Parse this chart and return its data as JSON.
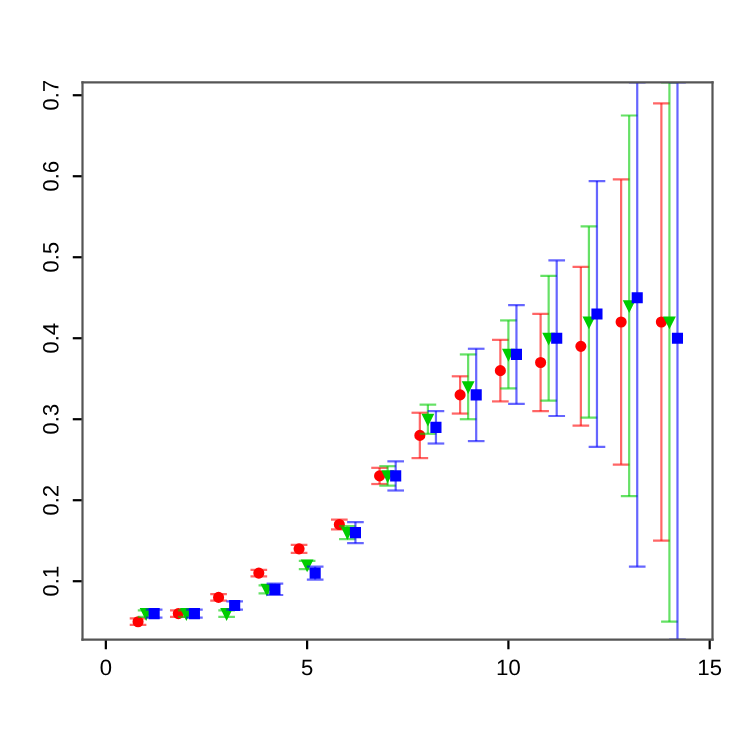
{
  "chart_data": {
    "type": "scatter",
    "xlim": [
      -0.58,
      15.07
    ],
    "ylim": [
      0.028,
      0.716
    ],
    "xticks": [
      0,
      5,
      10,
      15
    ],
    "yticks": [
      0.1,
      0.2,
      0.3,
      0.4,
      0.5,
      0.6,
      0.7
    ],
    "grid": false,
    "series": [
      {
        "color": "#ff0000",
        "marker": "circle",
        "x": [
          0.8,
          1.8,
          2.8,
          3.8,
          4.8,
          5.8,
          6.8,
          7.8,
          8.8,
          9.8,
          10.8,
          11.8,
          12.8,
          13.8
        ],
        "values": [
          0.05,
          0.06,
          0.08,
          0.11,
          0.14,
          0.17,
          0.23,
          0.28,
          0.33,
          0.36,
          0.37,
          0.39,
          0.42,
          0.42
        ],
        "errors": [
          0.004,
          0.004,
          0.004,
          0.004,
          0.005,
          0.006,
          0.01,
          0.028,
          0.023,
          0.038,
          0.06,
          0.098,
          0.176,
          0.27
        ]
      },
      {
        "color": "#00cd00",
        "marker": "triangle",
        "x": [
          1,
          2,
          3,
          4,
          5,
          6,
          7,
          8,
          9,
          10,
          11,
          12,
          13,
          14
        ],
        "values": [
          0.06,
          0.06,
          0.06,
          0.09,
          0.12,
          0.16,
          0.23,
          0.3,
          0.34,
          0.38,
          0.4,
          0.42,
          0.44,
          0.42
        ],
        "errors": [
          0.004,
          0.004,
          0.004,
          0.005,
          0.005,
          0.008,
          0.012,
          0.018,
          0.04,
          0.042,
          0.077,
          0.118,
          0.235,
          [
            0.05,
            0.716
          ]
        ]
      },
      {
        "color": "#0000ff",
        "marker": "square",
        "x": [
          1.2,
          2.2,
          3.2,
          4.2,
          5.2,
          6.2,
          7.2,
          8.2,
          9.2,
          10.2,
          11.2,
          12.2,
          13.2,
          14.2
        ],
        "values": [
          0.06,
          0.06,
          0.07,
          0.09,
          0.11,
          0.16,
          0.23,
          0.29,
          0.33,
          0.38,
          0.4,
          0.43,
          0.45,
          0.4
        ],
        "errors": [
          0.005,
          0.005,
          0.005,
          0.007,
          0.008,
          0.013,
          0.018,
          0.02,
          0.057,
          0.061,
          0.096,
          0.164,
          [
            0.118,
            0.716
          ],
          [
            0.028,
            0.716
          ]
        ]
      }
    ]
  }
}
